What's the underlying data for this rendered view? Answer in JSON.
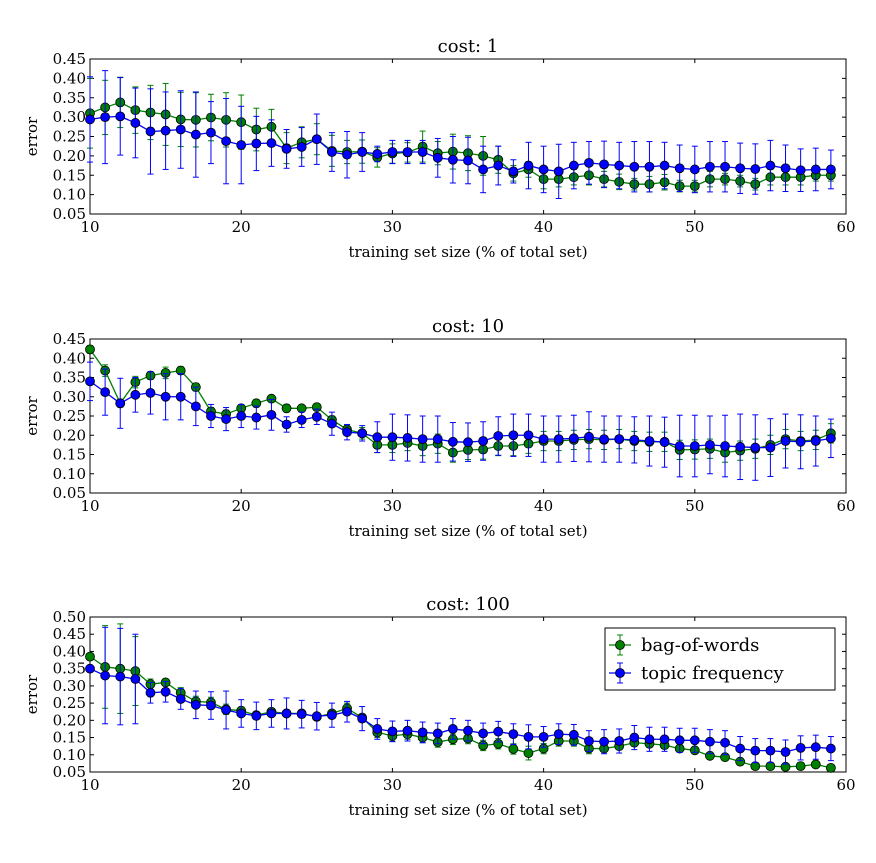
{
  "colors": {
    "bag_of_words": "#008000",
    "topic_frequency": "#0000ff"
  },
  "chart_data": [
    {
      "type": "line",
      "title": "cost: 1",
      "xlabel": "training set size (% of total set)",
      "ylabel": "error",
      "xlim": [
        10,
        60
      ],
      "ylim": [
        0.05,
        0.45
      ],
      "xticks": [
        "10",
        "20",
        "30",
        "40",
        "50",
        "60"
      ],
      "yticks": [
        "0.05",
        "0.10",
        "0.15",
        "0.20",
        "0.25",
        "0.30",
        "0.35",
        "0.40",
        "0.45"
      ],
      "grid": false,
      "legend": null,
      "x": [
        10,
        11,
        12,
        13,
        14,
        15,
        16,
        17,
        18,
        19,
        20,
        21,
        22,
        23,
        24,
        25,
        26,
        27,
        28,
        29,
        30,
        31,
        32,
        33,
        34,
        35,
        36,
        37,
        38,
        39,
        40,
        41,
        42,
        43,
        44,
        45,
        46,
        47,
        48,
        49,
        50,
        51,
        52,
        53,
        54,
        55,
        56,
        57,
        58,
        59
      ],
      "series": [
        {
          "name": "bag-of-words",
          "values": [
            0.31,
            0.325,
            0.338,
            0.318,
            0.312,
            0.307,
            0.294,
            0.293,
            0.299,
            0.293,
            0.287,
            0.268,
            0.275,
            0.22,
            0.235,
            0.243,
            0.213,
            0.21,
            0.211,
            0.196,
            0.206,
            0.209,
            0.224,
            0.207,
            0.211,
            0.207,
            0.2,
            0.19,
            0.155,
            0.165,
            0.14,
            0.14,
            0.145,
            0.15,
            0.14,
            0.133,
            0.127,
            0.127,
            0.132,
            0.122,
            0.122,
            0.14,
            0.14,
            0.135,
            0.127,
            0.145,
            0.145,
            0.145,
            0.15,
            0.15
          ],
          "errors": [
            0.09,
            0.07,
            0.065,
            0.06,
            0.07,
            0.08,
            0.07,
            0.07,
            0.06,
            0.07,
            0.07,
            0.055,
            0.045,
            0.04,
            0.04,
            0.04,
            0.04,
            0.03,
            0.03,
            0.025,
            0.025,
            0.025,
            0.04,
            0.03,
            0.045,
            0.045,
            0.05,
            0.035,
            0.02,
            0.02,
            0.025,
            0.02,
            0.02,
            0.025,
            0.02,
            0.02,
            0.015,
            0.02,
            0.02,
            0.015,
            0.015,
            0.02,
            0.015,
            0.015,
            0.015,
            0.02,
            0.02,
            0.02,
            0.015,
            0.015
          ]
        },
        {
          "name": "topic frequency",
          "values": [
            0.294,
            0.3,
            0.302,
            0.285,
            0.263,
            0.265,
            0.268,
            0.255,
            0.26,
            0.238,
            0.228,
            0.232,
            0.233,
            0.218,
            0.223,
            0.243,
            0.21,
            0.203,
            0.21,
            0.205,
            0.21,
            0.21,
            0.21,
            0.195,
            0.19,
            0.188,
            0.165,
            0.175,
            0.16,
            0.175,
            0.165,
            0.16,
            0.175,
            0.182,
            0.178,
            0.175,
            0.172,
            0.172,
            0.175,
            0.168,
            0.165,
            0.172,
            0.172,
            0.168,
            0.166,
            0.175,
            0.168,
            0.163,
            0.165,
            0.165
          ],
          "errors": [
            0.11,
            0.12,
            0.1,
            0.09,
            0.11,
            0.1,
            0.1,
            0.11,
            0.08,
            0.11,
            0.1,
            0.07,
            0.06,
            0.05,
            0.05,
            0.065,
            0.05,
            0.06,
            0.05,
            0.02,
            0.03,
            0.03,
            0.03,
            0.05,
            0.06,
            0.06,
            0.06,
            0.05,
            0.03,
            0.06,
            0.06,
            0.07,
            0.06,
            0.055,
            0.06,
            0.06,
            0.065,
            0.065,
            0.06,
            0.06,
            0.06,
            0.065,
            0.065,
            0.065,
            0.065,
            0.065,
            0.06,
            0.055,
            0.055,
            0.05
          ]
        }
      ]
    },
    {
      "type": "line",
      "title": "cost: 10",
      "xlabel": "training set size (% of total set)",
      "ylabel": "error",
      "xlim": [
        10,
        60
      ],
      "ylim": [
        0.05,
        0.45
      ],
      "xticks": [
        "10",
        "20",
        "30",
        "40",
        "50",
        "60"
      ],
      "yticks": [
        "0.05",
        "0.10",
        "0.15",
        "0.20",
        "0.25",
        "0.30",
        "0.35",
        "0.40",
        "0.45"
      ],
      "grid": false,
      "legend": null,
      "x": [
        10,
        11,
        12,
        13,
        14,
        15,
        16,
        17,
        18,
        19,
        20,
        21,
        22,
        23,
        24,
        25,
        26,
        27,
        28,
        29,
        30,
        31,
        32,
        33,
        34,
        35,
        36,
        37,
        38,
        39,
        40,
        41,
        42,
        43,
        44,
        45,
        46,
        47,
        48,
        49,
        50,
        51,
        52,
        53,
        54,
        55,
        56,
        57,
        58,
        59
      ],
      "series": [
        {
          "name": "bag-of-words",
          "values": [
            0.423,
            0.368,
            0.283,
            0.338,
            0.355,
            0.362,
            0.368,
            0.325,
            0.262,
            0.255,
            0.27,
            0.283,
            0.295,
            0.27,
            0.27,
            0.273,
            0.24,
            0.215,
            0.205,
            0.175,
            0.175,
            0.18,
            0.172,
            0.178,
            0.155,
            0.162,
            0.163,
            0.172,
            0.172,
            0.178,
            0.185,
            0.185,
            0.188,
            0.19,
            0.188,
            0.19,
            0.185,
            0.183,
            0.183,
            0.162,
            0.163,
            0.165,
            0.155,
            0.16,
            0.165,
            0.175,
            0.19,
            0.185,
            0.188,
            0.205
          ],
          "errors": [
            0.01,
            0.015,
            0.01,
            0.015,
            0.01,
            0.015,
            0.01,
            0.01,
            0.01,
            0.01,
            0.008,
            0.01,
            0.008,
            0.01,
            0.008,
            0.008,
            0.01,
            0.01,
            0.015,
            0.02,
            0.02,
            0.02,
            0.025,
            0.025,
            0.025,
            0.025,
            0.025,
            0.025,
            0.025,
            0.025,
            0.025,
            0.025,
            0.025,
            0.025,
            0.025,
            0.025,
            0.025,
            0.025,
            0.025,
            0.025,
            0.025,
            0.025,
            0.025,
            0.025,
            0.025,
            0.025,
            0.025,
            0.025,
            0.025,
            0.025
          ]
        },
        {
          "name": "topic frequency",
          "values": [
            0.34,
            0.312,
            0.283,
            0.305,
            0.31,
            0.3,
            0.3,
            0.275,
            0.25,
            0.242,
            0.25,
            0.246,
            0.253,
            0.228,
            0.24,
            0.248,
            0.23,
            0.208,
            0.205,
            0.195,
            0.195,
            0.193,
            0.19,
            0.19,
            0.183,
            0.182,
            0.185,
            0.198,
            0.2,
            0.2,
            0.19,
            0.19,
            0.192,
            0.196,
            0.19,
            0.19,
            0.188,
            0.185,
            0.182,
            0.172,
            0.172,
            0.175,
            0.172,
            0.17,
            0.168,
            0.168,
            0.185,
            0.183,
            0.185,
            0.192
          ],
          "errors": [
            0.05,
            0.06,
            0.065,
            0.045,
            0.055,
            0.06,
            0.06,
            0.05,
            0.03,
            0.03,
            0.03,
            0.03,
            0.04,
            0.02,
            0.02,
            0.02,
            0.03,
            0.02,
            0.02,
            0.04,
            0.06,
            0.06,
            0.06,
            0.06,
            0.05,
            0.05,
            0.05,
            0.05,
            0.055,
            0.055,
            0.06,
            0.06,
            0.06,
            0.065,
            0.06,
            0.06,
            0.06,
            0.065,
            0.065,
            0.08,
            0.08,
            0.075,
            0.08,
            0.085,
            0.085,
            0.075,
            0.07,
            0.07,
            0.065,
            0.05
          ]
        }
      ]
    },
    {
      "type": "line",
      "title": "cost: 100",
      "xlabel": "training set size (% of total set)",
      "ylabel": "error",
      "xlim": [
        10,
        60
      ],
      "ylim": [
        0.05,
        0.5
      ],
      "xticks": [
        "10",
        "20",
        "30",
        "40",
        "50",
        "60"
      ],
      "yticks": [
        "0.05",
        "0.10",
        "0.15",
        "0.20",
        "0.25",
        "0.30",
        "0.35",
        "0.40",
        "0.45",
        "0.50"
      ],
      "grid": false,
      "legend": "top-right",
      "x": [
        10,
        11,
        12,
        13,
        14,
        15,
        16,
        17,
        18,
        19,
        20,
        21,
        22,
        23,
        24,
        25,
        26,
        27,
        28,
        29,
        30,
        31,
        32,
        33,
        34,
        35,
        36,
        37,
        38,
        39,
        40,
        41,
        42,
        43,
        44,
        45,
        46,
        47,
        48,
        49,
        50,
        51,
        52,
        53,
        54,
        55,
        56,
        57,
        58,
        59
      ],
      "series": [
        {
          "name": "bag-of-words",
          "values": [
            0.385,
            0.355,
            0.35,
            0.343,
            0.305,
            0.31,
            0.28,
            0.255,
            0.252,
            0.232,
            0.228,
            0.215,
            0.225,
            0.22,
            0.22,
            0.21,
            0.22,
            0.235,
            0.208,
            0.165,
            0.155,
            0.16,
            0.15,
            0.137,
            0.145,
            0.147,
            0.127,
            0.132,
            0.117,
            0.105,
            0.118,
            0.14,
            0.14,
            0.118,
            0.118,
            0.125,
            0.135,
            0.132,
            0.128,
            0.118,
            0.113,
            0.097,
            0.093,
            0.08,
            0.067,
            0.067,
            0.065,
            0.067,
            0.072,
            0.062
          ],
          "errors": [
            0.01,
            0.12,
            0.13,
            0.1,
            0.015,
            0.01,
            0.015,
            0.015,
            0.015,
            0.015,
            0.01,
            0.01,
            0.01,
            0.01,
            0.01,
            0.01,
            0.01,
            0.015,
            0.01,
            0.015,
            0.015,
            0.015,
            0.015,
            0.015,
            0.015,
            0.015,
            0.015,
            0.015,
            0.015,
            0.02,
            0.015,
            0.015,
            0.015,
            0.015,
            0.01,
            0.01,
            0.01,
            0.01,
            0.01,
            0.01,
            0.01,
            0.01,
            0.01,
            0.01,
            0.01,
            0.01,
            0.01,
            0.01,
            0.01,
            0.01
          ]
        },
        {
          "name": "topic frequency",
          "values": [
            0.35,
            0.33,
            0.327,
            0.32,
            0.28,
            0.283,
            0.262,
            0.245,
            0.243,
            0.23,
            0.22,
            0.213,
            0.22,
            0.22,
            0.218,
            0.212,
            0.215,
            0.225,
            0.205,
            0.175,
            0.168,
            0.17,
            0.165,
            0.162,
            0.175,
            0.17,
            0.162,
            0.167,
            0.16,
            0.152,
            0.152,
            0.16,
            0.158,
            0.14,
            0.138,
            0.14,
            0.15,
            0.145,
            0.145,
            0.142,
            0.142,
            0.138,
            0.135,
            0.118,
            0.112,
            0.112,
            0.108,
            0.12,
            0.122,
            0.118
          ],
          "errors": [
            0.01,
            0.14,
            0.14,
            0.13,
            0.03,
            0.03,
            0.03,
            0.04,
            0.04,
            0.055,
            0.04,
            0.04,
            0.04,
            0.045,
            0.04,
            0.04,
            0.035,
            0.03,
            0.035,
            0.03,
            0.03,
            0.03,
            0.03,
            0.03,
            0.03,
            0.03,
            0.03,
            0.03,
            0.03,
            0.035,
            0.03,
            0.03,
            0.03,
            0.03,
            0.035,
            0.035,
            0.035,
            0.035,
            0.035,
            0.035,
            0.035,
            0.035,
            0.035,
            0.035,
            0.035,
            0.035,
            0.035,
            0.035,
            0.035,
            0.035
          ]
        }
      ]
    }
  ]
}
